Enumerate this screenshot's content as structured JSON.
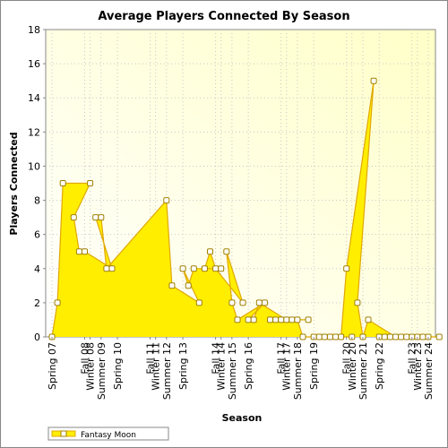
{
  "chart_data": {
    "type": "area",
    "title": "Average Players Connected By Season",
    "xlabel": "Season",
    "ylabel": "Players Connected",
    "ylim": [
      0,
      18
    ],
    "yticks": [
      0,
      2,
      4,
      6,
      8,
      10,
      12,
      14,
      16,
      18
    ],
    "grid": true,
    "legend_position": "bottom-left",
    "x_tick_labels": [
      "Spring 07",
      "Winter 08",
      "Fall 08",
      "Summer 09",
      "Spring 10",
      "Winter 11",
      "Fall 11",
      "Summer 12",
      "Spring 13",
      "Winter 14",
      "Fall 14",
      "Summer 15",
      "Spring 16",
      "Winter 17",
      "Fall 17",
      "Summer 18",
      "Spring 19",
      "Winter 20",
      "Fall 20",
      "Summer 21",
      "Spring 22",
      "Winter 23",
      "Fall 23",
      "Summer 24"
    ],
    "series": [
      {
        "name": "Fantasy Moon",
        "color": "#ffee00",
        "line_color": "#e0a800",
        "points": [
          {
            "season": "Spring 07",
            "y": 0
          },
          {
            "season": "Summer 07",
            "y": 2
          },
          {
            "season": "Fall 07",
            "y": 9
          },
          {
            "season": "Winter 08",
            "y": 9
          },
          {
            "season": "Spring 08",
            "y": 7
          },
          {
            "season": "Summer 08",
            "y": 5
          },
          {
            "season": "Fall 08",
            "y": 5
          },
          {
            "season": "Winter 09",
            "y": 4
          },
          {
            "season": "Spring 09",
            "y": 7
          },
          {
            "season": "Summer 09",
            "y": 7
          },
          {
            "season": "Fall 09",
            "y": 4
          },
          {
            "season": "Summer 12",
            "y": 8
          },
          {
            "season": "Fall 12",
            "y": 3
          },
          {
            "season": "Winter 13",
            "y": 2
          },
          {
            "season": "Spring 13",
            "y": 4
          },
          {
            "season": "Summer 13",
            "y": 3
          },
          {
            "season": "Fall 13",
            "y": 4
          },
          {
            "season": "Winter 14",
            "y": 4
          },
          {
            "season": "Spring 14",
            "y": 4
          },
          {
            "season": "Summer 14",
            "y": 5
          },
          {
            "season": "Fall 14",
            "y": 4
          },
          {
            "season": "Winter 15",
            "y": 2
          },
          {
            "season": "Spring 15",
            "y": 5
          },
          {
            "season": "Summer 15",
            "y": 2
          },
          {
            "season": "Fall 15",
            "y": 1
          },
          {
            "season": "Winter 16",
            "y": 2
          },
          {
            "season": "Spring 16",
            "y": 1
          },
          {
            "season": "Summer 16",
            "y": 1
          },
          {
            "season": "Fall 16",
            "y": 2
          },
          {
            "season": "Winter 17",
            "y": 1
          },
          {
            "season": "Spring 17",
            "y": 1
          },
          {
            "season": "Summer 17",
            "y": 1
          },
          {
            "season": "Fall 17",
            "y": 1
          },
          {
            "season": "Winter 18",
            "y": 1
          },
          {
            "season": "Spring 18",
            "y": 1
          },
          {
            "season": "Summer 18",
            "y": 1
          },
          {
            "season": "Fall 18",
            "y": 0
          },
          {
            "season": "Winter 19",
            "y": 0
          },
          {
            "season": "Spring 19",
            "y": 0
          },
          {
            "season": "Summer 19",
            "y": 0
          },
          {
            "season": "Fall 19",
            "y": 0
          },
          {
            "season": "Winter 20",
            "y": 0
          },
          {
            "season": "Spring 20",
            "y": 0
          },
          {
            "season": "Summer 20",
            "y": 0
          },
          {
            "season": "Fall 20",
            "y": 4
          },
          {
            "season": "Winter 21",
            "y": 15
          },
          {
            "season": "Spring 21",
            "y": 2
          },
          {
            "season": "Summer 21",
            "y": 0
          },
          {
            "season": "Fall 21",
            "y": 1
          },
          {
            "season": "Winter 22",
            "y": 0
          },
          {
            "season": "Spring 22",
            "y": 0
          },
          {
            "season": "Summer 22",
            "y": 0
          },
          {
            "season": "Fall 22",
            "y": 0
          },
          {
            "season": "Winter 23",
            "y": 0
          },
          {
            "season": "Spring 23",
            "y": 0
          },
          {
            "season": "Summer 23",
            "y": 0
          },
          {
            "season": "Fall 23",
            "y": 0
          },
          {
            "season": "Winter 24",
            "y": 0
          },
          {
            "season": "Spring 24",
            "y": 0
          },
          {
            "season": "Summer 24",
            "y": 0
          }
        ]
      }
    ]
  }
}
